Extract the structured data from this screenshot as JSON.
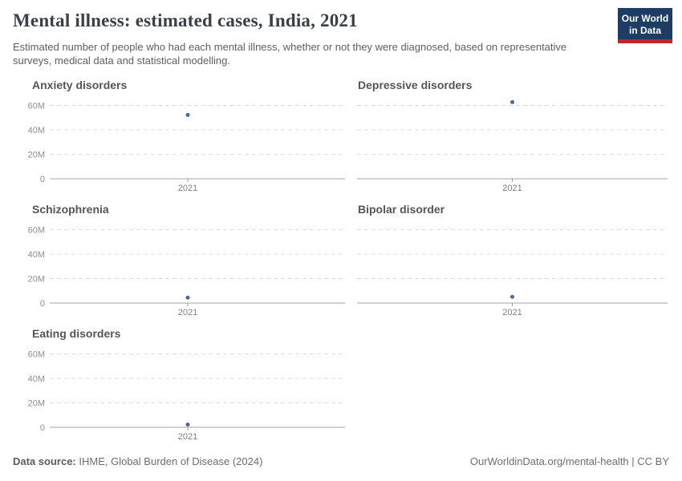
{
  "header": {
    "title": "Mental illness: estimated cases, India, 2021",
    "subtitle": "Estimated number of people who had each mental illness, whether or not they were diagnosed, based on representative surveys, medical data and statistical modelling.",
    "logo_line1": "Our World",
    "logo_line2": "in Data"
  },
  "chart_data": [
    {
      "type": "scatter",
      "title": "Anxiety disorders",
      "x": [
        2021
      ],
      "values_millions": [
        52.2
      ],
      "unit": "people",
      "ylim_millions": [
        0,
        60
      ],
      "yticks": [
        {
          "value": 0,
          "label": "0"
        },
        {
          "value": 20,
          "label": "20M"
        },
        {
          "value": 40,
          "label": "40M"
        },
        {
          "value": 60,
          "label": "60M"
        }
      ],
      "xtick_label": "2021",
      "show_y_axis_labels": true,
      "grid": "dashed-horizontal"
    },
    {
      "type": "scatter",
      "title": "Depressive disorders",
      "x": [
        2021
      ],
      "values_millions": [
        62.7
      ],
      "unit": "people",
      "ylim_millions": [
        0,
        60
      ],
      "yticks": [
        {
          "value": 0,
          "label": "0"
        },
        {
          "value": 20,
          "label": "20M"
        },
        {
          "value": 40,
          "label": "40M"
        },
        {
          "value": 60,
          "label": "60M"
        }
      ],
      "xtick_label": "2021",
      "show_y_axis_labels": false,
      "grid": "dashed-horizontal"
    },
    {
      "type": "scatter",
      "title": "Schizophrenia",
      "x": [
        2021
      ],
      "values_millions": [
        4.4
      ],
      "unit": "people",
      "ylim_millions": [
        0,
        60
      ],
      "yticks": [
        {
          "value": 0,
          "label": "0"
        },
        {
          "value": 20,
          "label": "20M"
        },
        {
          "value": 40,
          "label": "40M"
        },
        {
          "value": 60,
          "label": "60M"
        }
      ],
      "xtick_label": "2021",
      "show_y_axis_labels": true,
      "grid": "dashed-horizontal"
    },
    {
      "type": "scatter",
      "title": "Bipolar disorder",
      "x": [
        2021
      ],
      "values_millions": [
        5.1
      ],
      "unit": "people",
      "ylim_millions": [
        0,
        60
      ],
      "yticks": [
        {
          "value": 0,
          "label": "0"
        },
        {
          "value": 20,
          "label": "20M"
        },
        {
          "value": 40,
          "label": "40M"
        },
        {
          "value": 60,
          "label": "60M"
        }
      ],
      "xtick_label": "2021",
      "show_y_axis_labels": false,
      "grid": "dashed-horizontal"
    },
    {
      "type": "scatter",
      "title": "Eating disorders",
      "x": [
        2021
      ],
      "values_millions": [
        2.2
      ],
      "unit": "people",
      "ylim_millions": [
        0,
        60
      ],
      "yticks": [
        {
          "value": 0,
          "label": "0"
        },
        {
          "value": 20,
          "label": "20M"
        },
        {
          "value": 40,
          "label": "40M"
        },
        {
          "value": 60,
          "label": "60M"
        }
      ],
      "xtick_label": "2021",
      "show_y_axis_labels": true,
      "grid": "dashed-horizontal"
    }
  ],
  "colors": {
    "point": "#4c699e",
    "gridline": "#dcdcdc",
    "axis_line": "#a3a3a3",
    "tick_mark": "#999999",
    "ytick_text": "#8f8f8f",
    "xtick_text": "#7f7f7f"
  },
  "footer": {
    "source_label": "Data source:",
    "source_text": "IHME, Global Burden of Disease (2024)",
    "credit": "OurWorldinData.org/mental-health | CC BY"
  }
}
